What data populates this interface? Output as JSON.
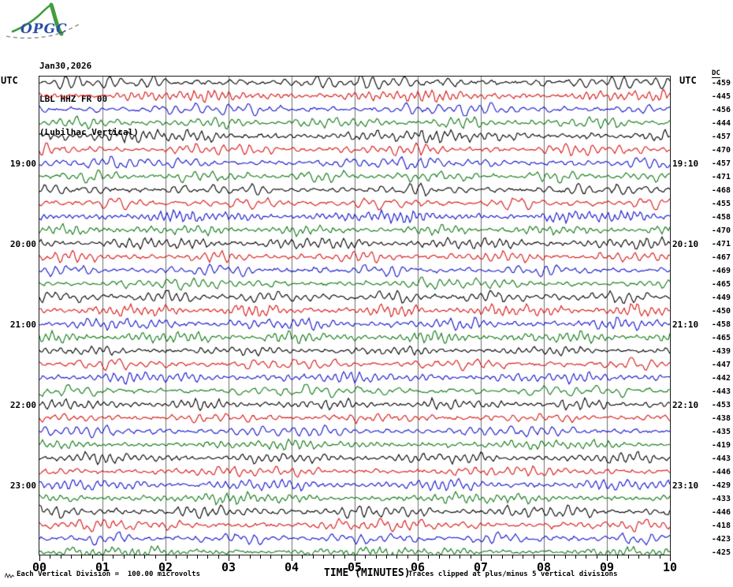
{
  "logo": {
    "text": "OPGC"
  },
  "header": {
    "date": "Jan30,2026",
    "station": "LBL HHZ FR 00",
    "location": "(Lubilhac Vertical)"
  },
  "axis": {
    "utc_left": "UTC",
    "utc_right": "UTC",
    "dc_header": "DC",
    "x_tick_labels": [
      "00",
      "01",
      "02",
      "03",
      "04",
      "05",
      "06",
      "07",
      "08",
      "09",
      "10"
    ],
    "x_title": "TIME (MINUTES)"
  },
  "footer": {
    "scale_note": "Each Vertical Division =  100.00 microvolts",
    "clip_note": "Traces clipped at plus/minus 5 vertical divisions"
  },
  "colors": {
    "trace": {
      "black": "#000000",
      "red": "#d81414",
      "blue": "#1414cc",
      "green": "#0f7814"
    },
    "grid": "#6e6e6e",
    "frame": "#1a1a1a",
    "logo_green": "#3f9e3f",
    "logo_blue": "#2b4fa8",
    "logo_dash": "#9a9a9a"
  },
  "chart_data": {
    "type": "line",
    "title": "Helicorder seismogram LBL HHZ FR 00 (Lubilhac Vertical), Jan30,2026",
    "description": "Webicorder drum plot: 36 horizontal 10-minute traces of continuous seismic noise, color cycling black/red/blue/green. Hour marks labeled on left (start of row) and right (end of row). Right DC column gives per-trace DC offset in microvolts. Waveform sample values are unresolvable noise (recreated as seeded pseudo-random noise).",
    "x_axis": {
      "label": "TIME (MINUTES)",
      "range": [
        0,
        10
      ],
      "major_tick_every_min": 1,
      "minor_tick_intervals_per_major": 6
    },
    "scale": {
      "per_vertical_division_microvolts": 100.0,
      "clip_divisions": 5
    },
    "legend_position": "none",
    "grid": "vertical minute lines",
    "rows": [
      {
        "dc": -459,
        "color": "black",
        "left": "",
        "right": ""
      },
      {
        "dc": -445,
        "color": "red",
        "left": "",
        "right": ""
      },
      {
        "dc": -456,
        "color": "blue",
        "left": "",
        "right": ""
      },
      {
        "dc": -444,
        "color": "green",
        "left": "",
        "right": ""
      },
      {
        "dc": -457,
        "color": "black",
        "left": "",
        "right": ""
      },
      {
        "dc": -470,
        "color": "red",
        "left": "",
        "right": ""
      },
      {
        "dc": -457,
        "color": "blue",
        "left": "19:00",
        "right": "19:10"
      },
      {
        "dc": -471,
        "color": "green",
        "left": "",
        "right": ""
      },
      {
        "dc": -468,
        "color": "black",
        "left": "",
        "right": ""
      },
      {
        "dc": -455,
        "color": "red",
        "left": "",
        "right": ""
      },
      {
        "dc": -458,
        "color": "blue",
        "left": "",
        "right": ""
      },
      {
        "dc": -470,
        "color": "green",
        "left": "",
        "right": ""
      },
      {
        "dc": -471,
        "color": "black",
        "left": "20:00",
        "right": "20:10"
      },
      {
        "dc": -467,
        "color": "red",
        "left": "",
        "right": ""
      },
      {
        "dc": -469,
        "color": "blue",
        "left": "",
        "right": ""
      },
      {
        "dc": -465,
        "color": "green",
        "left": "",
        "right": ""
      },
      {
        "dc": -449,
        "color": "black",
        "left": "",
        "right": ""
      },
      {
        "dc": -450,
        "color": "red",
        "left": "",
        "right": ""
      },
      {
        "dc": -458,
        "color": "blue",
        "left": "21:00",
        "right": "21:10"
      },
      {
        "dc": -465,
        "color": "green",
        "left": "",
        "right": ""
      },
      {
        "dc": -439,
        "color": "black",
        "left": "",
        "right": ""
      },
      {
        "dc": -447,
        "color": "red",
        "left": "",
        "right": ""
      },
      {
        "dc": -442,
        "color": "blue",
        "left": "",
        "right": ""
      },
      {
        "dc": -443,
        "color": "green",
        "left": "",
        "right": ""
      },
      {
        "dc": -453,
        "color": "black",
        "left": "22:00",
        "right": "22:10"
      },
      {
        "dc": -438,
        "color": "red",
        "left": "",
        "right": ""
      },
      {
        "dc": -435,
        "color": "blue",
        "left": "",
        "right": ""
      },
      {
        "dc": -419,
        "color": "green",
        "left": "",
        "right": ""
      },
      {
        "dc": -443,
        "color": "black",
        "left": "",
        "right": ""
      },
      {
        "dc": -446,
        "color": "red",
        "left": "",
        "right": ""
      },
      {
        "dc": -429,
        "color": "blue",
        "left": "23:00",
        "right": "23:10"
      },
      {
        "dc": -433,
        "color": "green",
        "left": "",
        "right": ""
      },
      {
        "dc": -446,
        "color": "black",
        "left": "",
        "right": ""
      },
      {
        "dc": -418,
        "color": "red",
        "left": "",
        "right": ""
      },
      {
        "dc": -423,
        "color": "blue",
        "left": "",
        "right": ""
      },
      {
        "dc": -425,
        "color": "green",
        "left": "",
        "right": ""
      }
    ]
  }
}
